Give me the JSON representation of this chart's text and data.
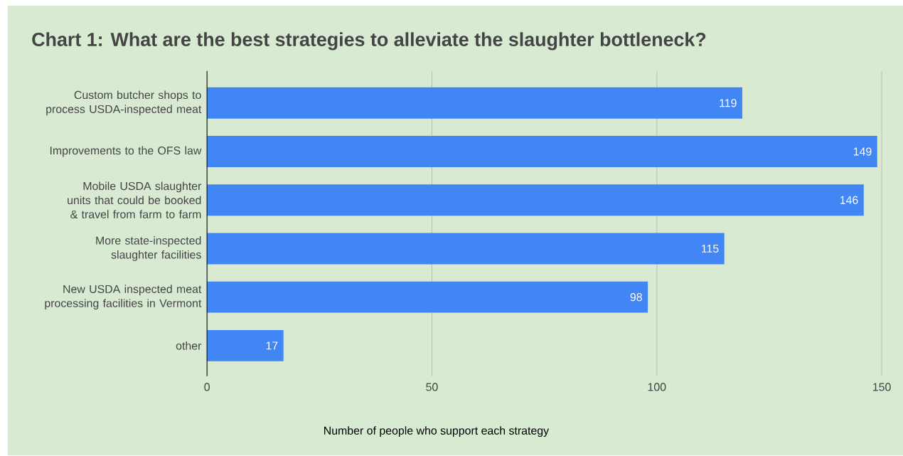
{
  "chart_data": {
    "type": "bar",
    "orientation": "horizontal",
    "title": "Chart 1: What are the best strategies to alleviate the slaughter bottleneck?",
    "xlabel": "Number of people who support each strategy",
    "categories": [
      "Custom butcher shops to process USDA-inspected meat",
      "Improvements to the OFS law",
      "Mobile USDA slaughter units that could be booked & travel from farm to farm",
      "More state-inspected slaughter facilities",
      "New USDA inspected meat processing facilities in Vermont",
      "other"
    ],
    "values": [
      119,
      149,
      146,
      115,
      98,
      17
    ],
    "color": "#4285f4",
    "xlim": [
      0,
      150
    ],
    "xticks": [
      0,
      50,
      100,
      150
    ],
    "grid": "x",
    "data_labels": true
  }
}
